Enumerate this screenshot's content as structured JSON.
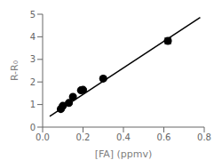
{
  "chart_data": {
    "type": "scatter",
    "xlabel": "[FA] (ppmv)",
    "ylabel": "R-R₀",
    "xlim": [
      0,
      0.8
    ],
    "ylim": [
      0,
      5
    ],
    "xticks": [
      {
        "value": 0,
        "label": "0.0"
      },
      0.2,
      0.4,
      0.6,
      0.8
    ],
    "yticks": [
      0,
      1,
      2,
      3,
      4,
      5
    ],
    "grid": false,
    "series": [
      {
        "type": "scatter",
        "marker": "circle",
        "color": "black",
        "x": [
          0.09,
          0.1,
          0.13,
          0.15,
          0.19,
          0.2,
          0.3,
          0.62
        ],
        "values": [
          0.8,
          0.94,
          1.07,
          1.34,
          1.63,
          1.65,
          2.15,
          3.82
        ],
        "error": [
          0.05,
          0.05,
          0.05,
          0.05,
          0.05,
          0.05,
          0.05,
          0.12
        ]
      },
      {
        "type": "line",
        "line_style": "solid",
        "color": "black",
        "x": [
          0.035,
          0.78
        ],
        "values": [
          0.4758,
          4.8564
        ]
      }
    ]
  }
}
